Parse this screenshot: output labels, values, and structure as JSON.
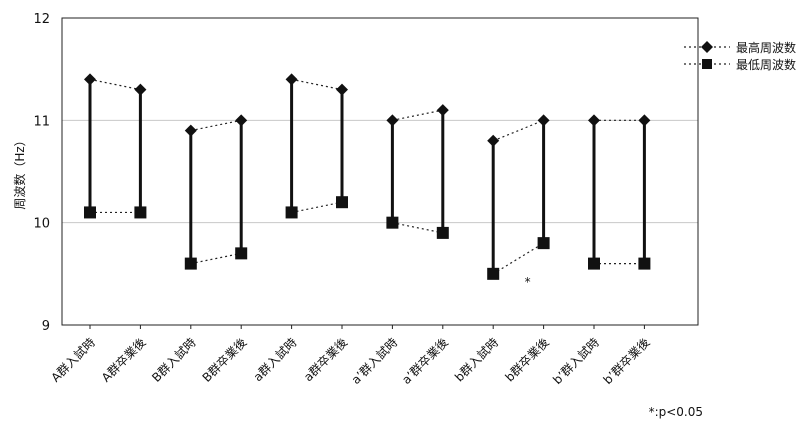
{
  "chart_data": {
    "type": "line",
    "ylabel": "周波数（Hz）",
    "ylim": [
      9,
      12
    ],
    "yticks": [
      9,
      10,
      11,
      12
    ],
    "grid": true,
    "legend_position": "top-right",
    "categories": [
      "A群入試時",
      "A群卒業後",
      "B群入試時",
      "B群卒業後",
      "a群入試時",
      "a群卒業後",
      "a’群入試時",
      "a’群卒業後",
      "b群入試時",
      "b群卒業後",
      "b’群入試時",
      "b’群卒業後"
    ],
    "series": [
      {
        "name": "最高周波数",
        "marker": "diamond",
        "values": [
          11.4,
          11.3,
          10.9,
          11.0,
          11.4,
          11.3,
          11.0,
          11.1,
          10.8,
          11.0,
          11.0,
          11.0
        ]
      },
      {
        "name": "最低周波数",
        "marker": "square",
        "values": [
          10.1,
          10.1,
          9.6,
          9.7,
          10.1,
          10.2,
          10.0,
          9.9,
          9.5,
          9.8,
          9.6,
          9.6
        ]
      }
    ],
    "annotations": [
      {
        "text": "*",
        "category_index": 9,
        "y": 9.48
      }
    ],
    "footnote": "*:p<0.05"
  }
}
